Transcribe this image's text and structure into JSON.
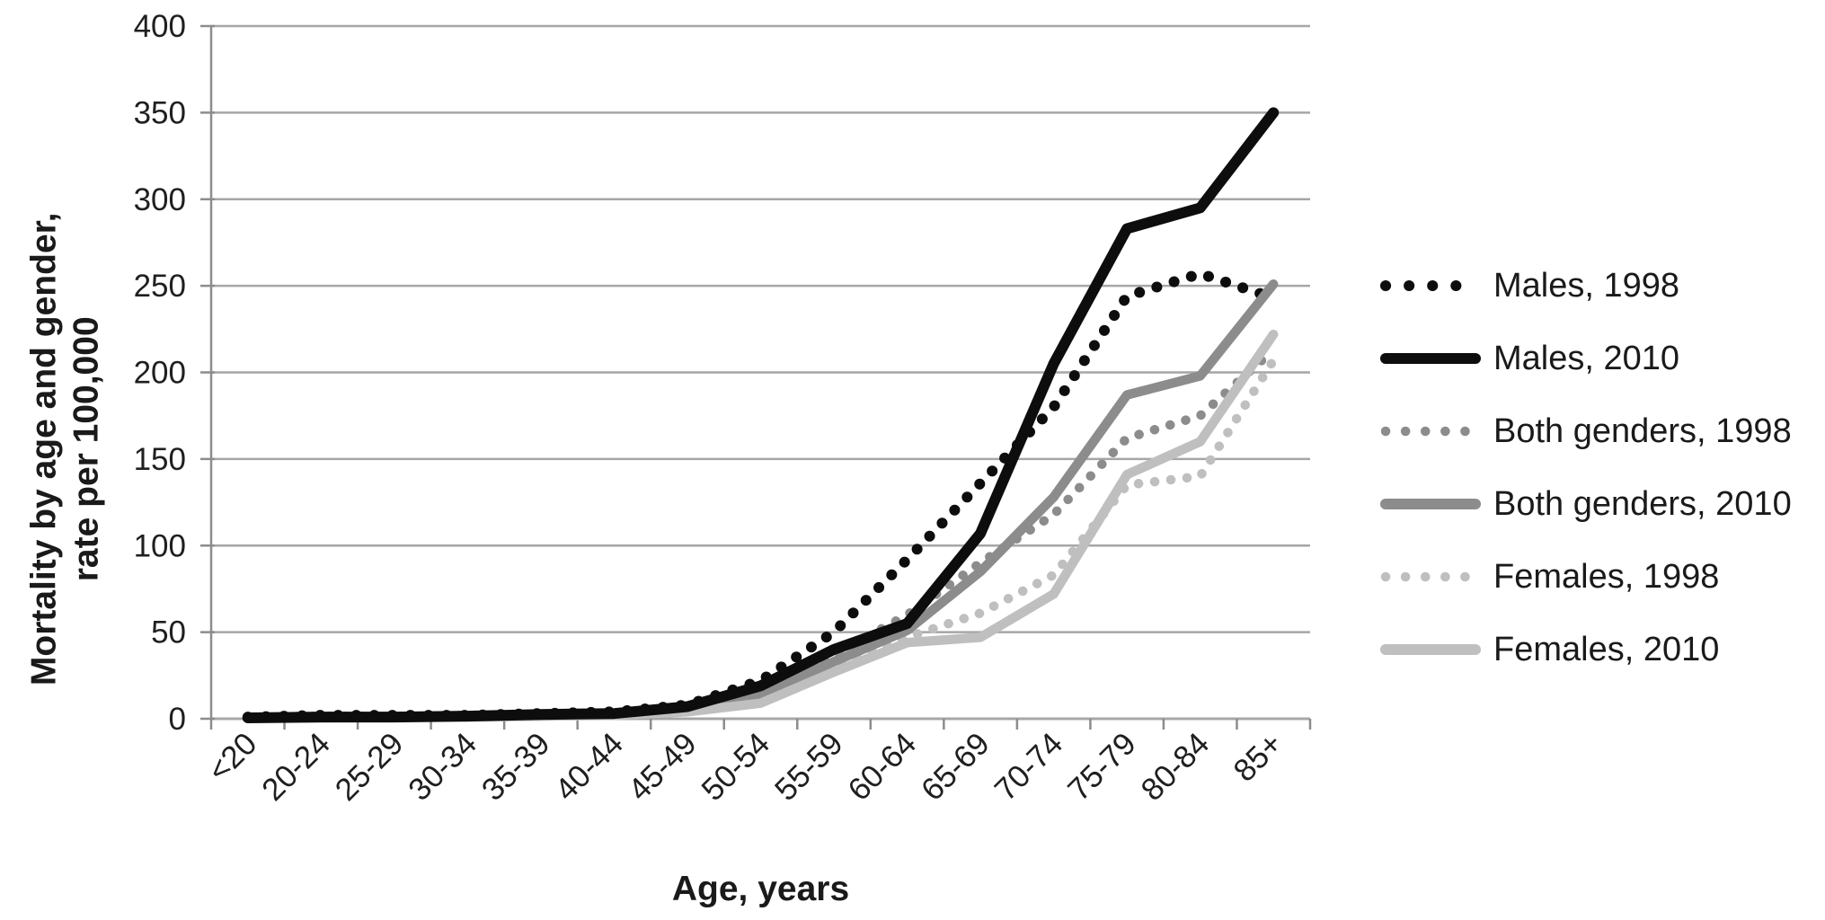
{
  "chart_data": {
    "type": "line",
    "title": "",
    "xlabel": "Age, years",
    "ylabel_line1": "Mortality by age and gender,",
    "ylabel_line2": "rate per 100,000",
    "ylim": [
      0,
      400
    ],
    "ytick_step": 50,
    "yticks": [
      "0",
      "50",
      "100",
      "150",
      "200",
      "250",
      "300",
      "350",
      "400"
    ],
    "grid": "horizontal",
    "legend_position": "right",
    "categories": [
      "<20",
      "20-24",
      "25-29",
      "30-34",
      "35-39",
      "40-44",
      "45-49",
      "50-54",
      "55-59",
      "60-64",
      "65-69",
      "70-74",
      "75-79",
      "80-84",
      "85+"
    ],
    "series": [
      {
        "name": "Males, 1998",
        "style": "dotted",
        "color": "#0d0d0d",
        "values": [
          1,
          2,
          2,
          2,
          3,
          4,
          8,
          22,
          50,
          92,
          136,
          180,
          244,
          257,
          243
        ]
      },
      {
        "name": "Males, 2010",
        "style": "solid",
        "color": "#0d0d0d",
        "values": [
          0.5,
          1,
          1,
          1.5,
          2.5,
          3,
          7,
          19,
          40,
          55,
          107,
          205,
          283,
          295,
          350
        ]
      },
      {
        "name": "Both genders, 1998",
        "style": "dotted",
        "color": "#8c8c8c",
        "values": [
          1,
          1.5,
          1.5,
          2,
          2.5,
          3.5,
          6,
          17,
          37,
          60,
          90,
          118,
          162,
          175,
          213
        ]
      },
      {
        "name": "Both genders, 2010",
        "style": "solid",
        "color": "#8c8c8c",
        "values": [
          0.5,
          1,
          1,
          1.5,
          2,
          3,
          5.5,
          14,
          33,
          51,
          85,
          128,
          187,
          198,
          251
        ]
      },
      {
        "name": "Females, 1998",
        "style": "dotted",
        "color": "#bfbfbf",
        "values": [
          1,
          1,
          1.5,
          2,
          2.5,
          3,
          5,
          13,
          30,
          47,
          61,
          83,
          135,
          140,
          207
        ]
      },
      {
        "name": "Females, 2010",
        "style": "solid",
        "color": "#bfbfbf",
        "values": [
          0.5,
          0.5,
          1,
          1,
          1.5,
          2,
          4,
          9,
          27,
          44,
          47,
          72,
          141,
          160,
          222
        ]
      }
    ],
    "colors": {
      "gridline": "#a6a6a6",
      "axis": "#8c8c8c",
      "text": "#1f1f1f"
    }
  }
}
